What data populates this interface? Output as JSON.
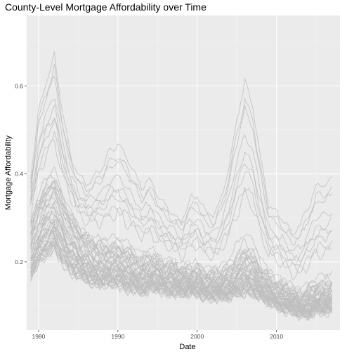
{
  "chart_data": {
    "type": "line",
    "title": "County-Level Mortgage Affordability over Time",
    "xlabel": "Date",
    "ylabel": "Mortgage Affordability",
    "x_ticks": [
      "1980",
      "1990",
      "2000",
      "2010"
    ],
    "y_ticks": [
      "0.2",
      "0.4",
      "0.6"
    ],
    "xlim": [
      1978.5,
      2018
    ],
    "ylim": [
      0.045,
      0.76
    ],
    "grid": true,
    "legend": "none",
    "colors": {
      "panel": "#ebebeb",
      "grid_major": "#ffffff",
      "series": "#bebebe"
    },
    "series_note_count": 60,
    "x": [
      1979,
      1980,
      1981,
      1982,
      1983,
      1984,
      1985,
      1986,
      1987,
      1988,
      1989,
      1990,
      1991,
      1992,
      1993,
      1994,
      1995,
      1996,
      1997,
      1998,
      1999,
      2000,
      2001,
      2002,
      2003,
      2004,
      2005,
      2006,
      2007,
      2008,
      2009,
      2010,
      2011,
      2012,
      2013,
      2014,
      2015,
      2016,
      2017
    ],
    "series_envelope": {
      "upper": [
        0.41,
        0.58,
        0.66,
        0.72,
        0.58,
        0.47,
        0.42,
        0.4,
        0.42,
        0.45,
        0.49,
        0.51,
        0.48,
        0.44,
        0.4,
        0.42,
        0.38,
        0.35,
        0.33,
        0.31,
        0.37,
        0.38,
        0.34,
        0.33,
        0.37,
        0.46,
        0.58,
        0.68,
        0.62,
        0.48,
        0.36,
        0.34,
        0.32,
        0.29,
        0.31,
        0.36,
        0.41,
        0.42,
        0.43
      ],
      "median": [
        0.28,
        0.33,
        0.36,
        0.38,
        0.33,
        0.3,
        0.27,
        0.25,
        0.24,
        0.23,
        0.23,
        0.23,
        0.22,
        0.21,
        0.2,
        0.21,
        0.2,
        0.19,
        0.19,
        0.18,
        0.18,
        0.18,
        0.17,
        0.17,
        0.17,
        0.18,
        0.2,
        0.22,
        0.21,
        0.18,
        0.16,
        0.15,
        0.14,
        0.13,
        0.12,
        0.13,
        0.14,
        0.14,
        0.15
      ],
      "lower": [
        0.17,
        0.2,
        0.22,
        0.23,
        0.2,
        0.18,
        0.17,
        0.16,
        0.15,
        0.15,
        0.15,
        0.15,
        0.14,
        0.14,
        0.13,
        0.14,
        0.14,
        0.13,
        0.13,
        0.13,
        0.13,
        0.13,
        0.12,
        0.12,
        0.12,
        0.12,
        0.13,
        0.13,
        0.13,
        0.12,
        0.11,
        0.1,
        0.09,
        0.09,
        0.08,
        0.08,
        0.09,
        0.09,
        0.09
      ]
    }
  }
}
